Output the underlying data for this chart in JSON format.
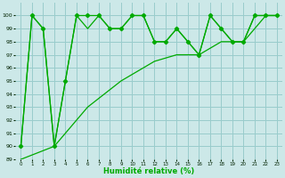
{
  "xlabel": "Humidité relative (%)",
  "bg_color": "#cce8e8",
  "grid_color": "#99cccc",
  "line_color": "#00aa00",
  "marker_color": "#00aa00",
  "xlim": [
    -0.5,
    23.5
  ],
  "ylim": [
    89,
    101
  ],
  "xticks": [
    0,
    1,
    2,
    3,
    4,
    5,
    6,
    7,
    8,
    9,
    10,
    11,
    12,
    13,
    14,
    15,
    16,
    17,
    18,
    19,
    20,
    21,
    22,
    23
  ],
  "yticks": [
    89,
    90,
    91,
    92,
    93,
    94,
    95,
    96,
    97,
    98,
    99,
    100
  ],
  "series1_x": [
    0,
    1,
    2,
    3,
    4,
    5,
    6,
    7,
    8,
    9,
    10,
    11,
    12,
    13,
    14,
    15,
    16,
    17,
    18,
    19,
    20,
    21,
    22,
    23
  ],
  "series1_y": [
    90,
    100,
    99,
    90,
    95,
    100,
    100,
    100,
    99,
    99,
    100,
    100,
    98,
    98,
    99,
    98,
    97,
    100,
    99,
    98,
    98,
    100,
    100,
    100
  ],
  "series2_x": [
    0,
    1,
    2,
    3,
    4,
    5,
    6,
    7,
    8,
    9,
    10,
    11,
    12,
    13,
    14,
    15,
    16,
    17,
    18,
    19,
    20,
    21,
    22,
    23
  ],
  "series2_y": [
    90,
    100,
    99,
    90,
    95,
    100,
    99,
    100,
    99,
    99,
    100,
    100,
    98,
    98,
    99,
    98,
    97,
    100,
    99,
    98,
    98,
    100,
    100,
    100
  ],
  "series3_x": [
    0,
    3,
    6,
    9,
    10,
    12,
    14,
    16,
    18,
    20,
    22,
    23
  ],
  "series3_y": [
    89,
    90,
    93,
    95,
    95.5,
    96.5,
    97,
    97,
    98,
    98,
    100,
    100
  ]
}
